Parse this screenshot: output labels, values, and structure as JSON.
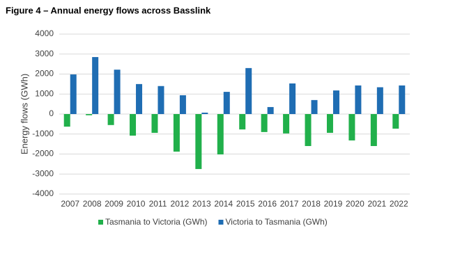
{
  "chart_data": {
    "type": "bar",
    "title": "Figure 4 – Annual energy flows across Basslink",
    "y_label": "Energy flows (GWh)",
    "categories": [
      "2007",
      "2008",
      "2009",
      "2010",
      "2011",
      "2012",
      "2013",
      "2014",
      "2015",
      "2016",
      "2017",
      "2018",
      "2019",
      "2020",
      "2021",
      "2022"
    ],
    "series": [
      {
        "name": "Tasmania to Victoria (GWh)",
        "color": "#21b04b",
        "values": [
          -630,
          -60,
          -550,
          -1080,
          -940,
          -1880,
          -2750,
          -2020,
          -770,
          -900,
          -970,
          -1600,
          -940,
          -1320,
          -1600,
          -730
        ]
      },
      {
        "name": "Victoria to Tasmania (GWh)",
        "color": "#1f6db3",
        "values": [
          1980,
          2850,
          2220,
          1500,
          1400,
          940,
          70,
          1110,
          2300,
          350,
          1530,
          700,
          1180,
          1430,
          1340,
          1430
        ]
      }
    ],
    "ylim": [
      -4000,
      4000
    ],
    "yticks": [
      -4000,
      -3000,
      -2000,
      -1000,
      0,
      1000,
      2000,
      3000,
      4000
    ],
    "grid": true,
    "legend": "bottom"
  }
}
